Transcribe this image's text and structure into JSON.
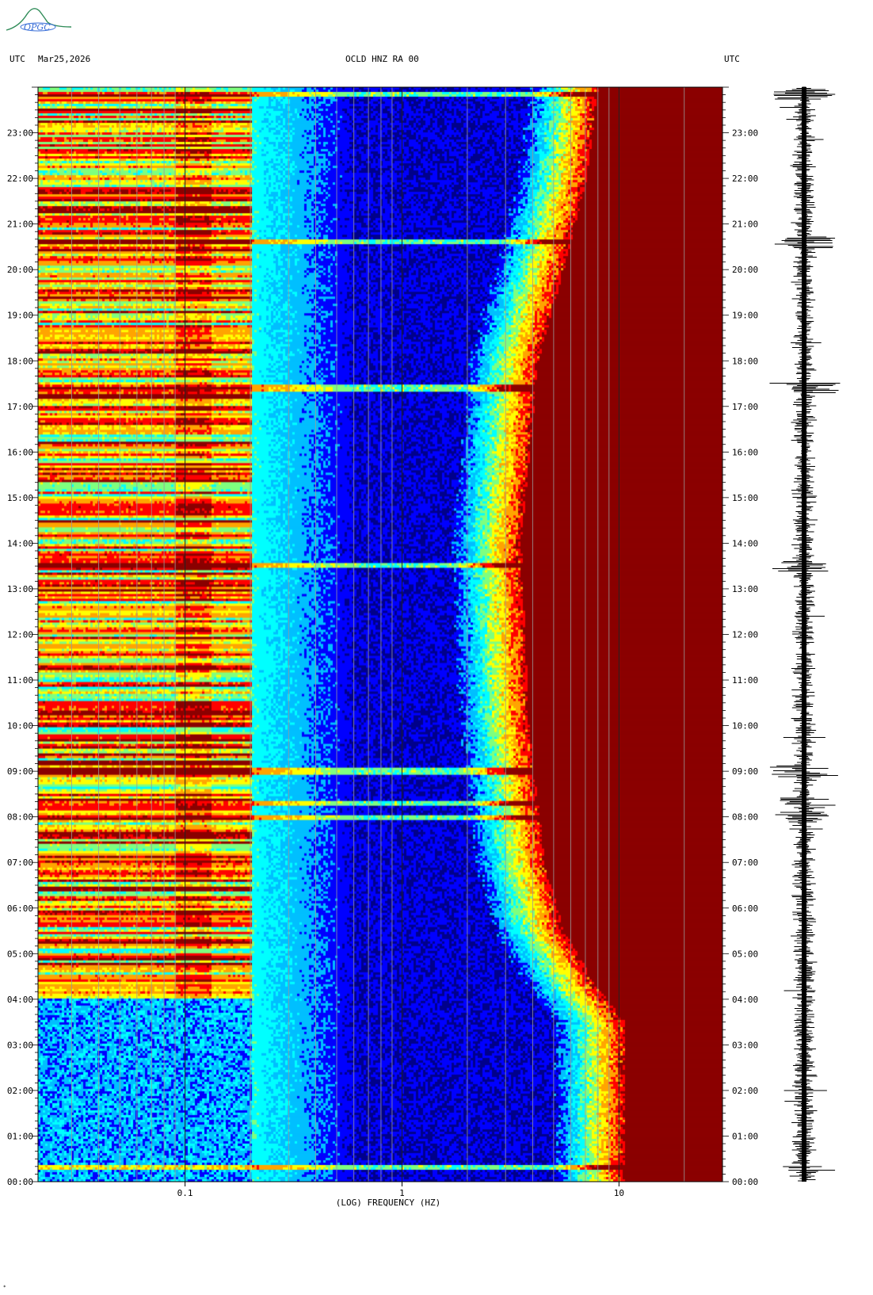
{
  "logo": {
    "text": "OPGC",
    "color": "#2e8b57"
  },
  "header": {
    "left_tz": "UTC",
    "date": "Mar25,2026",
    "station": "OCLD HNZ RA 00",
    "right_tz": "UTC"
  },
  "footnote": "*",
  "chart_data": {
    "type": "heatmap",
    "subtype": "spectrogram",
    "title": "OCLD HNZ RA 00",
    "xlabel": "(LOG) FREQUENCY (HZ)",
    "x_scale": "log",
    "xlim": [
      0.021,
      30
    ],
    "x_ticks": [
      {
        "value": 0.1,
        "label": "0.1"
      },
      {
        "value": 1,
        "label": "1"
      },
      {
        "value": 10,
        "label": "10"
      }
    ],
    "y_unit": "hour UTC",
    "ylim": [
      0,
      24
    ],
    "y_ticks": [
      "00:00",
      "01:00",
      "02:00",
      "03:00",
      "04:00",
      "05:00",
      "06:00",
      "07:00",
      "08:00",
      "09:00",
      "10:00",
      "11:00",
      "12:00",
      "13:00",
      "14:00",
      "15:00",
      "16:00",
      "17:00",
      "18:00",
      "19:00",
      "20:00",
      "21:00",
      "22:00",
      "23:00"
    ],
    "colormap": [
      "#00008b",
      "#0000ff",
      "#00bfff",
      "#00ffff",
      "#7fff7f",
      "#ffff00",
      "#ffa500",
      "#ff0000",
      "#8b0000"
    ],
    "gridlines_frequencies": [
      0.03,
      0.04,
      0.05,
      0.06,
      0.07,
      0.08,
      0.09,
      0.1,
      0.2,
      0.3,
      0.4,
      0.5,
      0.6,
      0.7,
      0.8,
      0.9,
      1,
      2,
      3,
      4,
      5,
      6,
      7,
      8,
      9,
      10,
      20
    ],
    "noise_floor_boundary": [
      {
        "hour": 0,
        "freq_hz": 10.5
      },
      {
        "hour": 3.5,
        "freq_hz": 10.5
      },
      {
        "hour": 4.2,
        "freq_hz": 8
      },
      {
        "hour": 5.5,
        "freq_hz": 5.5
      },
      {
        "hour": 7,
        "freq_hz": 4.5
      },
      {
        "hour": 10,
        "freq_hz": 3.8
      },
      {
        "hour": 14,
        "freq_hz": 3.5
      },
      {
        "hour": 18,
        "freq_hz": 4.2
      },
      {
        "hour": 20,
        "freq_hz": 5.5
      },
      {
        "hour": 22,
        "freq_hz": 7
      },
      {
        "hour": 24,
        "freq_hz": 8
      }
    ],
    "events_hours": [
      0.3,
      8.0,
      8.3,
      9.0,
      13.5,
      17.4,
      20.6,
      23.85
    ],
    "trace_label": "seismogram"
  }
}
